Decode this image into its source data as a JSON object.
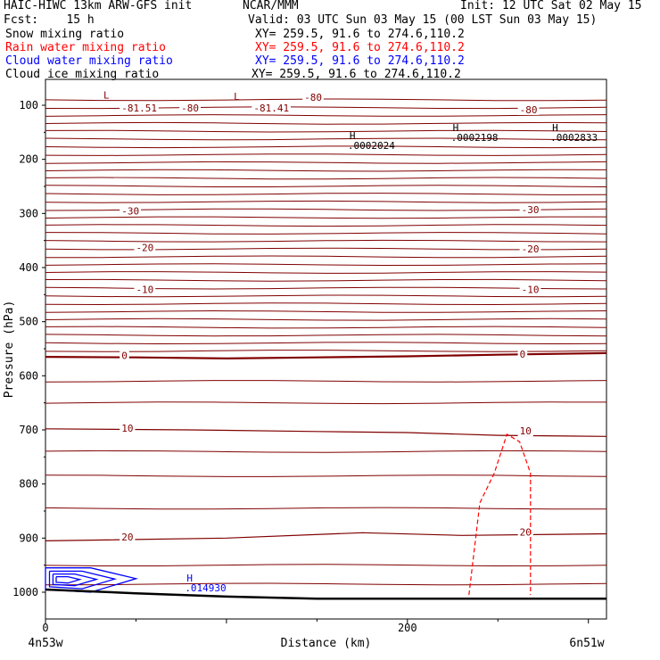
{
  "header": {
    "title_left": "HAIC-HIWC 13km ARW-GFS init",
    "org": "NCAR/MMM",
    "init": "Init: 12 UTC Sat 02 May 15",
    "fcst": "Fcst:    15 h",
    "valid": "Valid: 03 UTC Sun 03 May 15 (00 LST Sun 03 May 15)"
  },
  "legend": [
    {
      "name": "Snow mixing ratio",
      "xy": "XY= 259.5, 91.6 to 274.6,110.2",
      "color": "#000000"
    },
    {
      "name": "Rain water mixing ratio",
      "xy": "XY= 259.5, 91.6 to 274.6,110.2",
      "color": "#ff0000"
    },
    {
      "name": "Cloud water mixing ratio",
      "xy": "XY= 259.5, 91.6 to 274.6,110.2",
      "color": "#0000ff"
    },
    {
      "name": "Cloud ice mixing ratio",
      "xy": "XY= 259.5, 91.6 to 274.6,110.2",
      "color": "#000000"
    }
  ],
  "colors": {
    "temperature": "#800000",
    "rain": "#ff0000",
    "cloud_water": "#0000ff",
    "terrain": "#000000"
  },
  "chart_data": {
    "type": "line",
    "title": "HAIC-HIWC 13km ARW-GFS init",
    "xlabel": "Distance (km)",
    "ylabel": "Pressure (hPa)",
    "xlim": [
      0,
      310
    ],
    "ylim": [
      1050,
      50
    ],
    "x_ticks": [
      0,
      200
    ],
    "x_tick_labels": [
      "0",
      "200"
    ],
    "y_ticks": [
      100,
      200,
      300,
      400,
      500,
      600,
      700,
      800,
      900,
      1000
    ],
    "endpoint_left": "4n53w",
    "endpoint_right": "6n51w",
    "isotherm_labels": [
      {
        "text": "-81.51",
        "x": 42,
        "p": 110
      },
      {
        "text": "-80",
        "x": 75,
        "p": 110
      },
      {
        "text": "-81.41",
        "x": 115,
        "p": 110
      },
      {
        "text": "-80",
        "x": 143,
        "p": 90
      },
      {
        "text": "-80",
        "x": 262,
        "p": 113
      },
      {
        "text": "-30",
        "x": 42,
        "p": 300
      },
      {
        "text": "-30",
        "x": 263,
        "p": 298
      },
      {
        "text": "-20",
        "x": 50,
        "p": 368
      },
      {
        "text": "-20",
        "x": 263,
        "p": 370
      },
      {
        "text": "-10",
        "x": 50,
        "p": 445
      },
      {
        "text": "-10",
        "x": 263,
        "p": 445
      },
      {
        "text": "0",
        "x": 42,
        "p": 567
      },
      {
        "text": "0",
        "x": 262,
        "p": 565
      },
      {
        "text": "10",
        "x": 42,
        "p": 702
      },
      {
        "text": "10",
        "x": 262,
        "p": 707
      },
      {
        "text": "20",
        "x": 42,
        "p": 903
      },
      {
        "text": "20",
        "x": 262,
        "p": 894
      }
    ],
    "extrema": [
      {
        "kind": "L",
        "value": "",
        "x": 34,
        "p": 88
      },
      {
        "kind": "L",
        "value": "",
        "x": 106,
        "p": 90
      },
      {
        "kind": "H",
        "value": ".0002024",
        "x": 170,
        "p": 163
      },
      {
        "kind": "H",
        "value": ".0002198",
        "x": 227,
        "p": 148
      },
      {
        "kind": "H",
        "value": ".0002833",
        "x": 282,
        "p": 148
      },
      {
        "kind": "H",
        "value": ".014930",
        "x": 80,
        "p": 980
      }
    ],
    "temperature_contours": [
      {
        "label": "0",
        "values": [
          [
            0,
            565
          ],
          [
            50,
            566
          ],
          [
            100,
            568
          ],
          [
            150,
            566
          ],
          [
            200,
            564
          ],
          [
            250,
            561
          ],
          [
            310,
            558
          ]
        ]
      },
      {
        "label": "10",
        "values": [
          [
            0,
            698
          ],
          [
            80,
            700
          ],
          [
            150,
            703
          ],
          [
            200,
            705
          ],
          [
            250,
            710
          ],
          [
            310,
            712
          ]
        ]
      },
      {
        "label": "20",
        "values": [
          [
            0,
            905
          ],
          [
            100,
            900
          ],
          [
            175,
            890
          ],
          [
            230,
            895
          ],
          [
            310,
            892
          ]
        ]
      }
    ],
    "rain_contour": {
      "values": [
        [
          234,
          1005
        ],
        [
          240,
          835
        ],
        [
          248,
          780
        ],
        [
          255,
          708
        ],
        [
          262,
          722
        ],
        [
          268,
          780
        ],
        [
          268,
          880
        ],
        [
          268,
          1005
        ]
      ]
    },
    "cloud_water_contour": {
      "values": [
        [
          0,
          955
        ],
        [
          25,
          955
        ],
        [
          50,
          975
        ],
        [
          25,
          1000
        ],
        [
          0,
          995
        ]
      ]
    },
    "terrain": {
      "values": [
        [
          0,
          995
        ],
        [
          50,
          1002
        ],
        [
          100,
          1008
        ],
        [
          150,
          1012
        ],
        [
          200,
          1012
        ],
        [
          310,
          1012
        ]
      ]
    }
  }
}
